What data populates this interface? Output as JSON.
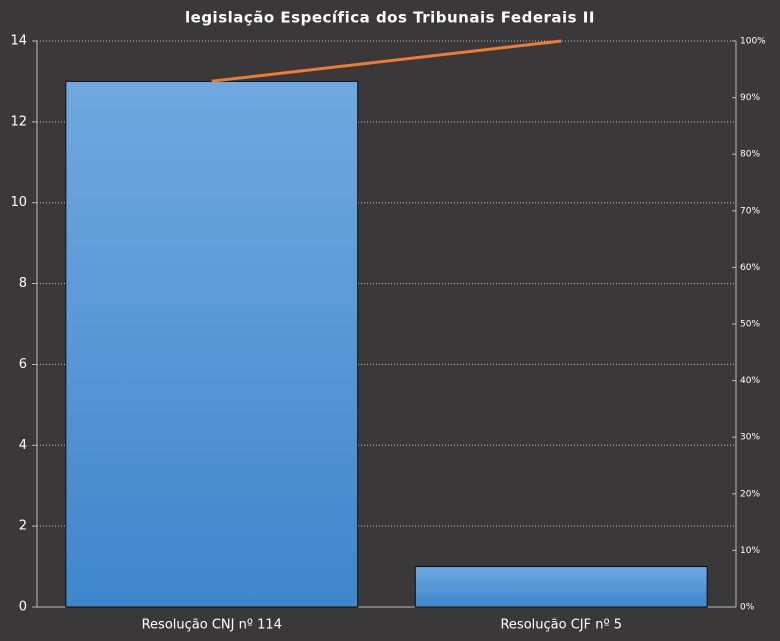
{
  "chart_data": {
    "type": "pareto",
    "title": "legislação Específica dos Tribunais Federais II",
    "categories": [
      "Resolução CNJ nº 114",
      "Resolução CJF nº 5"
    ],
    "series": [
      {
        "type": "bar",
        "color": "#5b9bd5",
        "values": [
          13,
          1
        ]
      },
      {
        "type": "line",
        "axis": "y2",
        "color": "#ed7d31",
        "values": [
          92.9,
          100
        ]
      }
    ],
    "ylim": [
      0,
      14
    ],
    "yticks": [
      0,
      2,
      4,
      6,
      8,
      10,
      12,
      14
    ],
    "y2lim": [
      0,
      100
    ],
    "y2ticks": [
      {
        "value": 0,
        "label": "0%"
      },
      {
        "value": 10,
        "label": "10%"
      },
      {
        "value": 20,
        "label": "20%"
      },
      {
        "value": 30,
        "label": "30%"
      },
      {
        "value": 40,
        "label": "40%"
      },
      {
        "value": 50,
        "label": "50%"
      },
      {
        "value": 60,
        "label": "60%"
      },
      {
        "value": 70,
        "label": "70%"
      },
      {
        "value": 80,
        "label": "80%"
      },
      {
        "value": 90,
        "label": "90%"
      },
      {
        "value": 100,
        "label": "100%"
      }
    ],
    "grid": true
  }
}
